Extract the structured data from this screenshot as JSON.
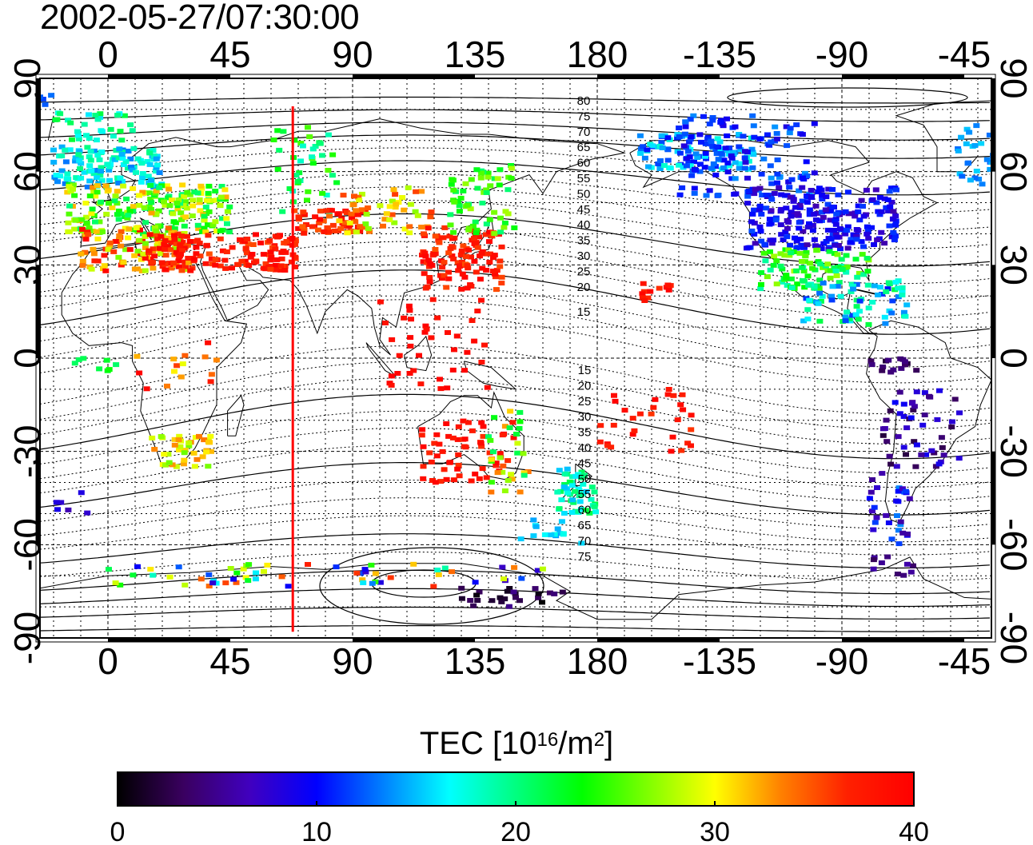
{
  "title": "2002-05-27/07:30:00",
  "map": {
    "top_axis_labels": [
      "0",
      "45",
      "90",
      "135",
      "180",
      "-135",
      "-90",
      "-45"
    ],
    "bottom_axis_labels": [
      "0",
      "45",
      "90",
      "135",
      "180",
      "-135",
      "-90",
      "-45"
    ],
    "left_axis_labels": [
      "90",
      "60",
      "30",
      "0",
      "-30",
      "-60",
      "-90"
    ],
    "right_axis_labels": [
      "90",
      "60",
      "30",
      "0",
      "-30",
      "-60",
      "-90"
    ],
    "contour_labels_north": [
      "80",
      "75",
      "70",
      "65",
      "60",
      "55",
      "50",
      "45",
      "40",
      "35",
      "30",
      "25",
      "20",
      "15"
    ],
    "contour_labels_south": [
      "15",
      "20",
      "25",
      "30",
      "35",
      "40",
      "45",
      "50",
      "55",
      "60",
      "65",
      "70",
      "75"
    ],
    "terminator_longitude": 68,
    "terminator_color": "#ff0000"
  },
  "colorbar": {
    "title_prefix": "TEC  [10",
    "title_exp1": "16",
    "title_mid": "/m",
    "title_exp2": "2",
    "title_suffix": "]",
    "tick_labels": [
      "0",
      "10",
      "20",
      "30",
      "40"
    ],
    "min": 0,
    "max": 40,
    "colors": [
      "#000000",
      "#3a0060",
      "#4000c0",
      "#0000ff",
      "#0080ff",
      "#00ffff",
      "#00ff80",
      "#00ff00",
      "#80ff00",
      "#ffff00",
      "#ff8000",
      "#ff2000",
      "#ff0000"
    ]
  }
}
